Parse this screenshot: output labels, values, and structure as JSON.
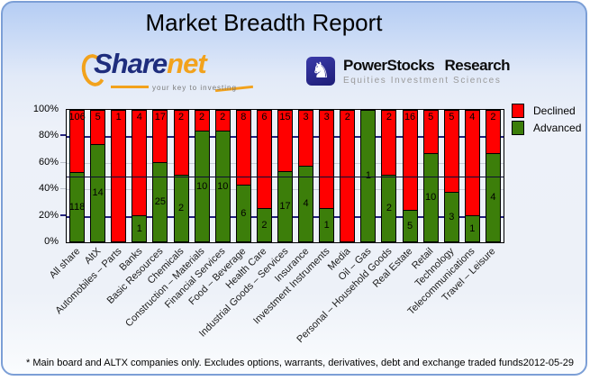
{
  "title": "Market Breadth Report",
  "logos": {
    "sharenet": {
      "name_primary": "Share",
      "name_secondary": "net",
      "tagline": "your key to investing",
      "accent_color": "#F2A21C",
      "text_color": "#1E2D7D"
    },
    "powerstocks": {
      "title": "PowerStocks Research",
      "subtitle": "Equities Investment Sciences",
      "knight_icon": "♞",
      "icon_color": "#24248A"
    }
  },
  "legend": [
    {
      "label": "Declined",
      "color": "#FF0000"
    },
    {
      "label": "Advanced",
      "color": "#3C7E0A"
    }
  ],
  "footer": {
    "note": "* Main board and ALTX companies only. Excludes options, warrants, derivatives, debt and exchange traded funds",
    "date": "2012-05-29"
  },
  "chart_data": {
    "type": "bar",
    "stacked": true,
    "stack_mode": "percent",
    "title": "Market Breadth Report",
    "xlabel": "",
    "ylabel": "",
    "ylim": [
      0,
      100
    ],
    "grid": "horizontal",
    "legend_position": "top-right",
    "reference_line_pct": 50,
    "y_ticks": [
      "100%",
      "80%",
      "60%",
      "40%",
      "20%",
      "0%"
    ],
    "categories": [
      "All share",
      "AltX",
      "Automobiles – Parts",
      "Banks",
      "Basic Resources",
      "Chemicals",
      "Construction – Materials",
      "Financial Services",
      "Food – Beverage",
      "Health Care",
      "Industrial Goods – Services",
      "Insurance",
      "Investment Instruments",
      "Media",
      "Oil – Gas",
      "Personal – Household Goods",
      "Real Estate",
      "Retail",
      "Technology",
      "Telecommunications",
      "Travel – Leisure"
    ],
    "series": [
      {
        "name": "Declined",
        "color": "#FF0000",
        "values": [
          106,
          5,
          1,
          4,
          17,
          2,
          2,
          2,
          8,
          6,
          15,
          3,
          3,
          2,
          0,
          2,
          16,
          5,
          5,
          4,
          2
        ]
      },
      {
        "name": "Advanced",
        "color": "#3C7E0A",
        "values": [
          118,
          14,
          0,
          1,
          25,
          2,
          10,
          10,
          6,
          2,
          17,
          4,
          1,
          0,
          1,
          2,
          5,
          10,
          3,
          1,
          4
        ]
      }
    ]
  }
}
